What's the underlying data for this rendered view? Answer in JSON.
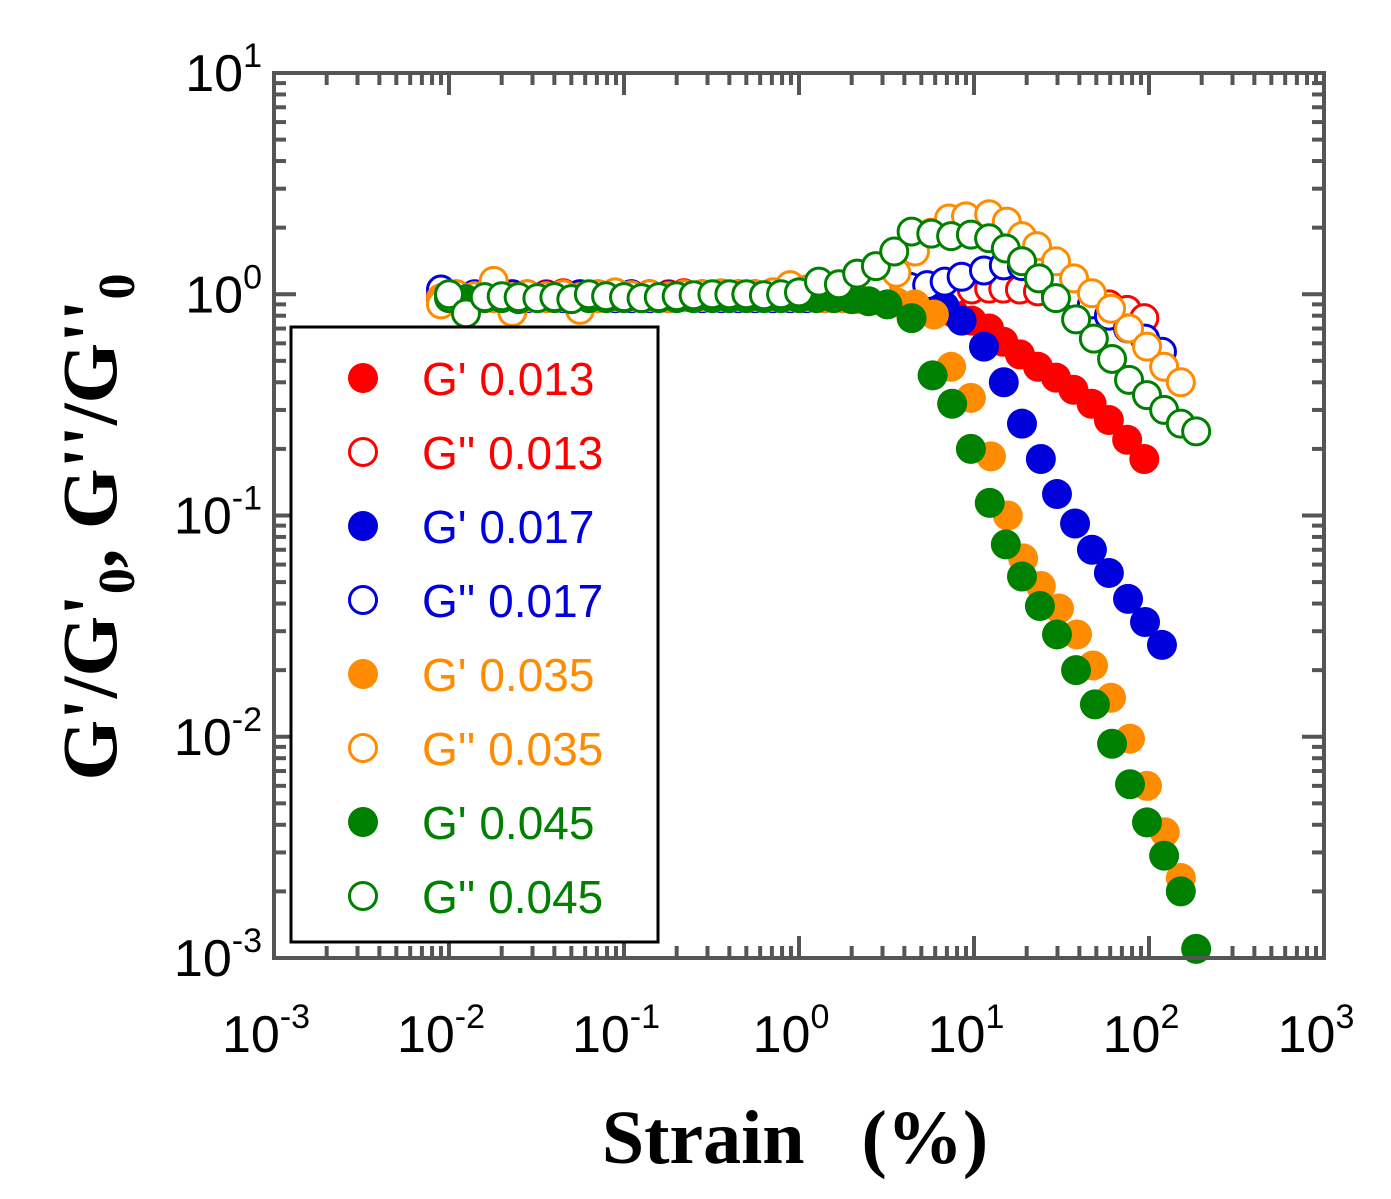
{
  "chart_data": {
    "type": "scatter",
    "title": "",
    "xlabel": "Strain   (%)",
    "ylabel_parts": [
      "G'/G'",
      "0",
      ", G''/G''",
      "0"
    ],
    "xscale": "log",
    "yscale": "log",
    "xlim": [
      0.001,
      1000
    ],
    "ylim": [
      0.001,
      10
    ],
    "grid": false,
    "legend_position": "left",
    "x_ticks": [
      {
        "base": "10",
        "exp": "-3",
        "value": 0.001
      },
      {
        "base": "10",
        "exp": "-2",
        "value": 0.01
      },
      {
        "base": "10",
        "exp": "-1",
        "value": 0.1
      },
      {
        "base": "10",
        "exp": "0",
        "value": 1
      },
      {
        "base": "10",
        "exp": "1",
        "value": 10
      },
      {
        "base": "10",
        "exp": "2",
        "value": 100
      },
      {
        "base": "10",
        "exp": "3",
        "value": 1000
      }
    ],
    "y_ticks": [
      {
        "base": "10",
        "exp": "-3",
        "value": 0.001
      },
      {
        "base": "10",
        "exp": "-2",
        "value": 0.01
      },
      {
        "base": "10",
        "exp": "-1",
        "value": 0.1
      },
      {
        "base": "10",
        "exp": "0",
        "value": 1
      },
      {
        "base": "10",
        "exp": "1",
        "value": 10
      }
    ],
    "series": [
      {
        "name": "G' 0.013",
        "color": "#FF0000",
        "filled": true,
        "x": [
          0.009,
          0.011,
          0.014,
          0.018,
          0.023,
          0.028,
          0.036,
          0.045,
          0.056,
          0.071,
          0.089,
          0.11,
          0.14,
          0.18,
          0.22,
          0.28,
          0.36,
          0.45,
          0.56,
          0.71,
          0.89,
          1.1,
          1.4,
          1.8,
          2.2,
          2.8,
          3.6,
          4.8,
          6.1,
          7.7,
          9.7,
          12.2,
          14.7,
          18.3,
          23.2,
          29.4,
          37,
          47,
          59,
          75,
          94
        ],
        "y": [
          0.97,
          0.98,
          0.97,
          0.98,
          0.97,
          0.98,
          0.97,
          0.98,
          0.97,
          0.98,
          0.97,
          0.97,
          0.97,
          0.97,
          0.98,
          0.97,
          0.98,
          0.97,
          0.97,
          0.97,
          0.98,
          0.97,
          0.97,
          0.96,
          0.96,
          0.95,
          0.95,
          0.93,
          0.88,
          0.82,
          0.76,
          0.7,
          0.61,
          0.535,
          0.47,
          0.42,
          0.37,
          0.32,
          0.27,
          0.22,
          0.18
        ]
      },
      {
        "name": "G'' 0.013",
        "color": "#FF0000",
        "filled": false,
        "x": [
          0.009,
          0.011,
          0.014,
          0.018,
          0.023,
          0.028,
          0.036,
          0.045,
          0.056,
          0.071,
          0.089,
          0.11,
          0.14,
          0.18,
          0.22,
          0.28,
          0.36,
          0.45,
          0.56,
          0.71,
          0.89,
          1.1,
          1.4,
          1.8,
          2.2,
          2.8,
          3.6,
          4.8,
          6.1,
          7.7,
          9.7,
          12.2,
          14.7,
          18.3,
          23.2,
          29.4,
          37,
          47,
          59,
          75,
          94
        ],
        "y": [
          1.0,
          1.0,
          0.99,
          1.01,
          1.0,
          0.99,
          1.0,
          1.01,
          1.0,
          1.0,
          0.99,
          1.0,
          1.0,
          1.0,
          1.01,
          1.0,
          1.0,
          1.0,
          1.0,
          1.02,
          1.05,
          1.0,
          1.0,
          1.0,
          1.0,
          1.0,
          1.0,
          1.0,
          1.02,
          1.04,
          1.05,
          1.06,
          1.06,
          1.05,
          1.03,
          1.0,
          0.97,
          0.93,
          0.9,
          0.85,
          0.78
        ]
      },
      {
        "name": "G' 0.017",
        "color": "#0000DD",
        "filled": true,
        "x": [
          0.009,
          0.011,
          0.014,
          0.018,
          0.023,
          0.028,
          0.036,
          0.045,
          0.056,
          0.071,
          0.089,
          0.11,
          0.14,
          0.18,
          0.22,
          0.28,
          0.36,
          0.45,
          0.56,
          0.71,
          0.89,
          1.1,
          1.4,
          1.8,
          2.2,
          2.8,
          3.4,
          4.3,
          5.4,
          6.8,
          8.5,
          11.4,
          14.8,
          18.8,
          24.1,
          29.8,
          37.8,
          47.2,
          59,
          75.9,
          94.9,
          118.6
        ],
        "y": [
          0.95,
          0.96,
          0.96,
          0.97,
          0.96,
          0.96,
          0.97,
          0.96,
          0.96,
          0.97,
          0.96,
          0.96,
          0.96,
          0.96,
          0.97,
          0.96,
          0.96,
          0.96,
          0.96,
          0.96,
          0.96,
          0.96,
          0.96,
          0.96,
          0.96,
          0.96,
          0.96,
          0.95,
          0.93,
          0.88,
          0.76,
          0.58,
          0.4,
          0.26,
          0.18,
          0.125,
          0.092,
          0.07,
          0.055,
          0.042,
          0.033,
          0.026
        ]
      },
      {
        "name": "G'' 0.017",
        "color": "#0000DD",
        "filled": false,
        "x": [
          0.009,
          0.011,
          0.014,
          0.018,
          0.023,
          0.028,
          0.036,
          0.045,
          0.056,
          0.071,
          0.089,
          0.11,
          0.14,
          0.18,
          0.22,
          0.28,
          0.36,
          0.45,
          0.56,
          0.71,
          0.89,
          1.1,
          1.4,
          1.8,
          2.2,
          2.8,
          3.4,
          4.3,
          5.4,
          6.8,
          8.5,
          11.4,
          14.8,
          18.8,
          24.1,
          29.8,
          37.8,
          47.2,
          59,
          75.9,
          94.9,
          118.6
        ],
        "y": [
          1.05,
          0.99,
          1.0,
          0.99,
          1.0,
          1.0,
          0.99,
          1.0,
          1.0,
          0.99,
          1.0,
          1.0,
          1.0,
          0.99,
          1.0,
          1.0,
          1.0,
          1.0,
          1.0,
          1.0,
          1.0,
          1.0,
          1.0,
          1.02,
          1.03,
          1.05,
          1.06,
          1.08,
          1.1,
          1.14,
          1.2,
          1.28,
          1.35,
          1.34,
          1.25,
          1.12,
          1.0,
          0.9,
          0.8,
          0.7,
          0.63,
          0.55
        ]
      },
      {
        "name": "G' 0.035",
        "color": "#FF8C00",
        "filled": true,
        "x": [
          0.009,
          0.011,
          0.014,
          0.018,
          0.023,
          0.028,
          0.036,
          0.045,
          0.056,
          0.071,
          0.089,
          0.11,
          0.14,
          0.18,
          0.22,
          0.28,
          0.36,
          0.45,
          0.56,
          0.71,
          0.89,
          1.1,
          1.4,
          1.8,
          2.2,
          2.8,
          3.6,
          4.6,
          5.9,
          7.4,
          9.6,
          12.5,
          15.6,
          19.1,
          24.1,
          30.6,
          38.8,
          47.9,
          60.7,
          77.9,
          97.4,
          123,
          152
        ],
        "y": [
          0.96,
          0.97,
          0.97,
          0.96,
          0.97,
          0.97,
          0.96,
          0.97,
          0.97,
          0.96,
          0.97,
          0.97,
          0.97,
          0.96,
          0.97,
          0.97,
          0.97,
          0.97,
          0.97,
          0.97,
          0.97,
          0.97,
          0.96,
          0.96,
          0.95,
          0.94,
          0.92,
          0.9,
          0.81,
          0.47,
          0.34,
          0.185,
          0.1,
          0.064,
          0.048,
          0.038,
          0.029,
          0.021,
          0.015,
          0.0098,
          0.006,
          0.0037,
          0.0023
        ]
      },
      {
        "name": "G'' 0.035",
        "color": "#FF8C00",
        "filled": false,
        "x": [
          0.009,
          0.011,
          0.014,
          0.018,
          0.023,
          0.028,
          0.036,
          0.045,
          0.056,
          0.071,
          0.089,
          0.11,
          0.14,
          0.18,
          0.22,
          0.28,
          0.36,
          0.45,
          0.56,
          0.71,
          0.89,
          1.1,
          1.4,
          1.8,
          2.2,
          2.8,
          3.6,
          4.6,
          5.7,
          7.2,
          9.0,
          12.2,
          15.4,
          18.8,
          22.9,
          29.4,
          37.3,
          47.2,
          60.7,
          76.9,
          97.4,
          122,
          152
        ],
        "y": [
          0.9,
          1.0,
          0.98,
          1.15,
          0.83,
          1.0,
          0.98,
          1.0,
          0.85,
          1.0,
          1.02,
          0.99,
          1.0,
          0.98,
          1.0,
          1.0,
          1.01,
          1.0,
          1.0,
          1.02,
          1.1,
          1.05,
          1.02,
          1.0,
          1.0,
          1.05,
          1.25,
          1.56,
          1.9,
          2.2,
          2.25,
          2.3,
          2.13,
          1.83,
          1.65,
          1.41,
          1.18,
          1.01,
          0.86,
          0.7,
          0.58,
          0.47,
          0.4
        ]
      },
      {
        "name": "G' 0.045",
        "color": "#008000",
        "filled": true,
        "x": [
          0.01,
          0.0125,
          0.016,
          0.02,
          0.025,
          0.032,
          0.04,
          0.05,
          0.063,
          0.079,
          0.1,
          0.126,
          0.158,
          0.2,
          0.25,
          0.32,
          0.4,
          0.5,
          0.63,
          0.79,
          1.0,
          1.26,
          1.58,
          2.0,
          2.5,
          3.2,
          4.4,
          5.8,
          7.5,
          9.6,
          12.3,
          15.2,
          18.8,
          23.8,
          29.8,
          38.3,
          49.1,
          61.5,
          77.9,
          97.4,
          122,
          152,
          186
        ],
        "y": [
          0.96,
          0.95,
          0.96,
          0.96,
          0.95,
          0.96,
          0.96,
          0.95,
          0.96,
          0.96,
          0.96,
          0.96,
          0.96,
          0.96,
          0.96,
          0.96,
          0.96,
          0.96,
          0.96,
          0.96,
          0.96,
          0.96,
          0.96,
          0.95,
          0.93,
          0.9,
          0.78,
          0.43,
          0.32,
          0.2,
          0.114,
          0.074,
          0.053,
          0.039,
          0.029,
          0.02,
          0.014,
          0.0093,
          0.0061,
          0.0041,
          0.0029,
          0.002,
          0.0011
        ]
      },
      {
        "name": "G'' 0.045",
        "color": "#008000",
        "filled": false,
        "x": [
          0.01,
          0.0125,
          0.016,
          0.02,
          0.025,
          0.032,
          0.04,
          0.05,
          0.063,
          0.079,
          0.1,
          0.126,
          0.158,
          0.2,
          0.25,
          0.32,
          0.4,
          0.5,
          0.63,
          0.79,
          1.0,
          1.3,
          1.69,
          2.15,
          2.75,
          3.5,
          4.4,
          5.7,
          7.4,
          9.6,
          12.2,
          15.2,
          18.8,
          23.5,
          29.4,
          38.3,
          48.4,
          61.5,
          76.9,
          97.4,
          122,
          152,
          186
        ],
        "y": [
          1.0,
          0.82,
          0.97,
          0.98,
          0.97,
          0.96,
          0.97,
          0.95,
          1.0,
          0.98,
          0.97,
          0.96,
          0.97,
          0.98,
          0.99,
          1.0,
          1.0,
          1.0,
          0.99,
          1.0,
          1.02,
          1.14,
          1.11,
          1.24,
          1.34,
          1.56,
          1.92,
          1.88,
          1.83,
          1.86,
          1.79,
          1.61,
          1.41,
          1.18,
          0.96,
          0.77,
          0.63,
          0.51,
          0.41,
          0.35,
          0.3,
          0.26,
          0.24
        ]
      }
    ]
  }
}
